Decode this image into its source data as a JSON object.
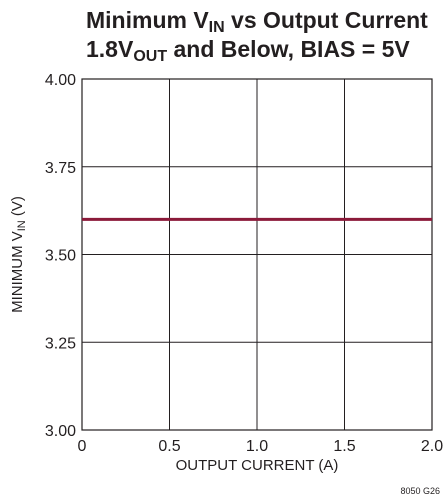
{
  "chart_data": {
    "type": "line",
    "title_lines": [
      [
        {
          "text": "Minimum V",
          "sub": false
        },
        {
          "text": "IN",
          "sub": true
        },
        {
          "text": " vs Output Current",
          "sub": false
        }
      ],
      [
        {
          "text": "1.8V",
          "sub": false
        },
        {
          "text": "OUT",
          "sub": true
        },
        {
          "text": " and Below, BIAS = 5V",
          "sub": false
        }
      ]
    ],
    "xlabel": "OUTPUT CURRENT (A)",
    "ylabel_parts": [
      {
        "text": "MINIMUM V",
        "sub": false
      },
      {
        "text": "IN",
        "sub": true
      },
      {
        "text": " (V)",
        "sub": false
      }
    ],
    "xlim": [
      0,
      2.0
    ],
    "ylim": [
      3.0,
      4.0
    ],
    "x_ticks": [
      {
        "value": 0,
        "label": "0"
      },
      {
        "value": 0.5,
        "label": "0.5"
      },
      {
        "value": 1.0,
        "label": "1.0"
      },
      {
        "value": 1.5,
        "label": "1.5"
      },
      {
        "value": 2.0,
        "label": "2.0"
      }
    ],
    "y_ticks": [
      {
        "value": 3.0,
        "label": "3.00"
      },
      {
        "value": 3.25,
        "label": "3.25"
      },
      {
        "value": 3.5,
        "label": "3.50"
      },
      {
        "value": 3.75,
        "label": "3.75"
      },
      {
        "value": 4.0,
        "label": "4.00"
      }
    ],
    "grid": true,
    "series": [
      {
        "color": "#8b1a3a",
        "x": [
          0,
          2.0
        ],
        "y": [
          3.6,
          3.6
        ]
      }
    ],
    "figure_code": "8050 G26"
  }
}
